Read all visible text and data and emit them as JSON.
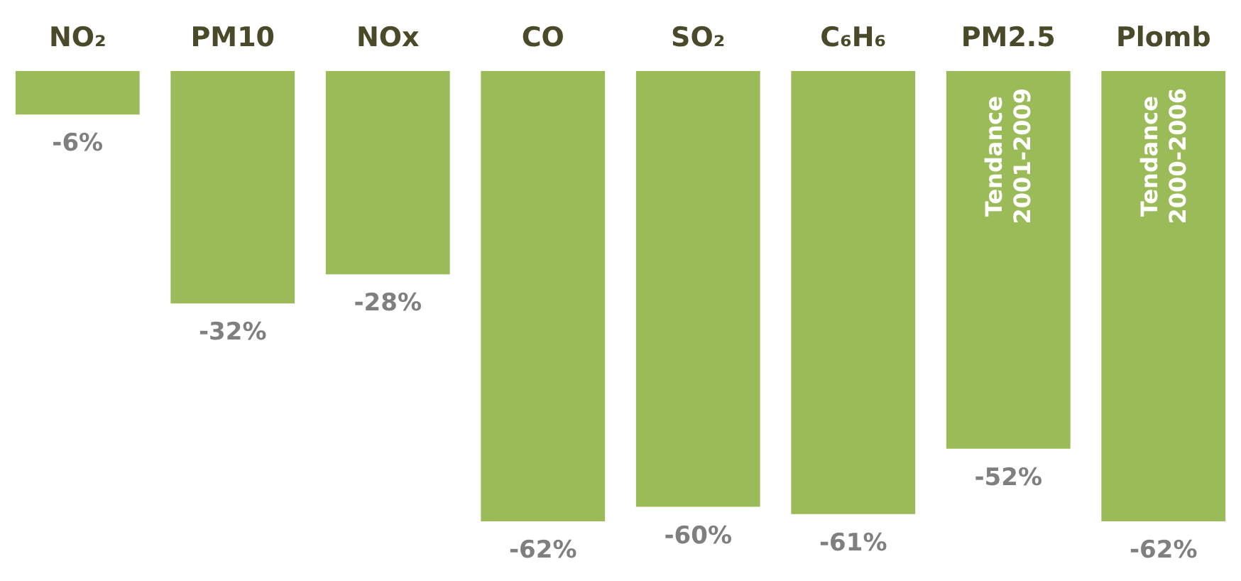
{
  "chart_data": {
    "type": "bar",
    "categories": [
      "NO₂",
      "PM10",
      "NOx",
      "CO",
      "SO₂",
      "C₆H₆",
      "PM2.5",
      "Plomb"
    ],
    "values": [
      -6,
      -32,
      -28,
      -62,
      -60,
      -61,
      -52,
      -62
    ],
    "value_labels": [
      "-6%",
      "-32%",
      "-28%",
      "-62%",
      "-60%",
      "-61%",
      "-52%",
      "-62%"
    ],
    "color": "#9bbb59",
    "annotations": [
      "Tendance 2001-2009",
      "Tendance 2000-2006"
    ]
  }
}
